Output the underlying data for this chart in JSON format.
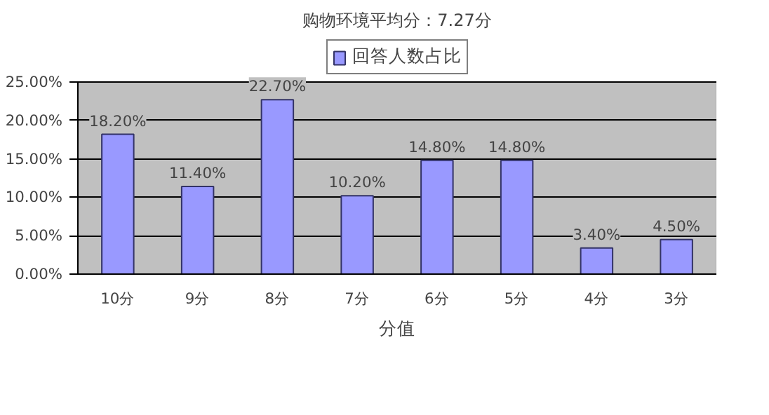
{
  "chart_data": {
    "type": "bar",
    "title": "购物环境平均分：7.27分",
    "xlabel": "分值",
    "categories": [
      "10分",
      "9分",
      "8分",
      "7分",
      "6分",
      "5分",
      "4分",
      "3分"
    ],
    "series": [
      {
        "name": "回答人数占比",
        "color": "#9999ff",
        "values": [
          18.2,
          11.4,
          22.7,
          10.2,
          14.8,
          14.8,
          3.4,
          4.5
        ],
        "value_labels": [
          "18.20%",
          "11.40%",
          "22.70%",
          "10.20%",
          "14.80%",
          "14.80%",
          "3.40%",
          "4.50%"
        ]
      }
    ],
    "ylim": [
      0,
      25
    ],
    "yticks": [
      {
        "value": 0,
        "label": "0.00%"
      },
      {
        "value": 5,
        "label": "5.00%"
      },
      {
        "value": 10,
        "label": "10.00%"
      },
      {
        "value": 15,
        "label": "15.00%"
      },
      {
        "value": 20,
        "label": "20.00%"
      },
      {
        "value": 25,
        "label": "25.00%"
      }
    ],
    "grid": "y",
    "legend": "top"
  }
}
